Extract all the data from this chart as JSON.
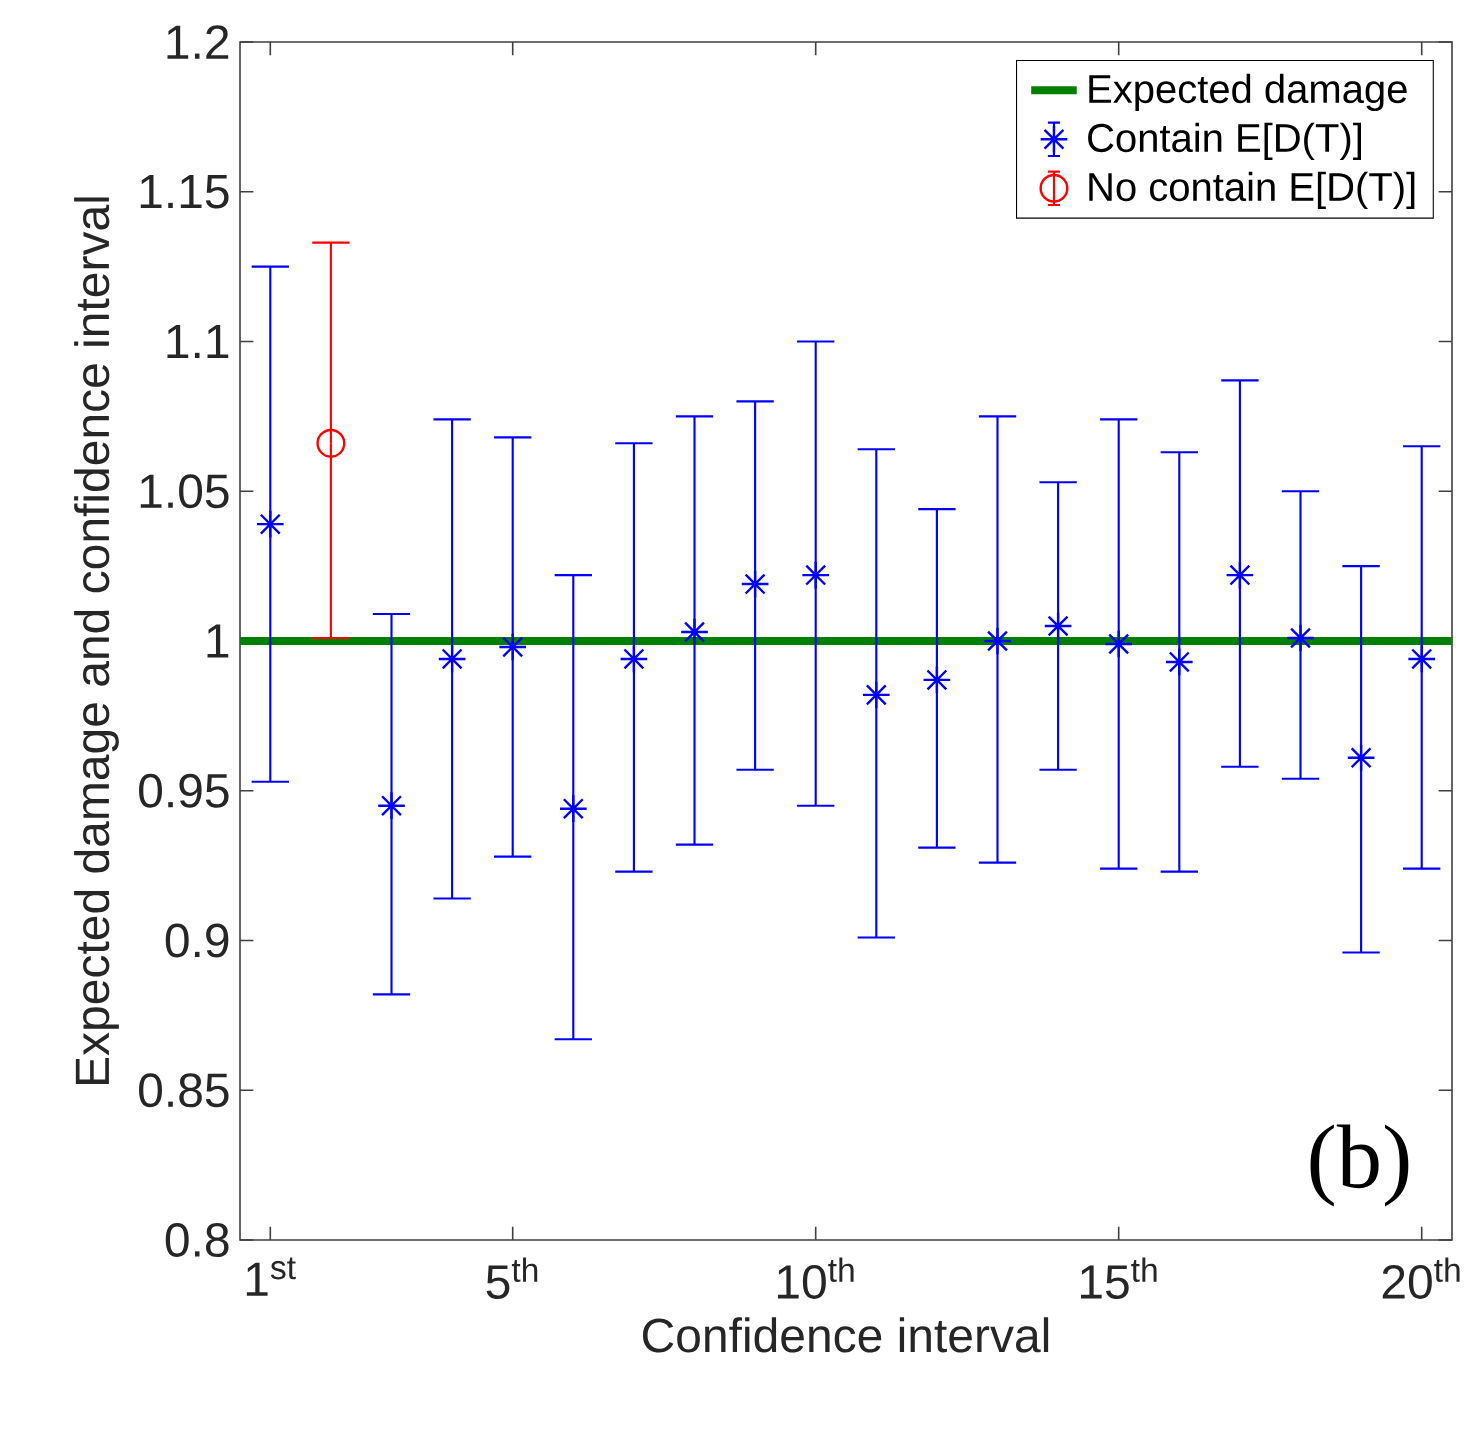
{
  "chart_data": {
    "type": "scatter",
    "xlabel": "Confidence interval",
    "ylabel": "Expected damage and confidence interval",
    "xlim": [
      0.5,
      20.5
    ],
    "ylim": [
      0.8,
      1.2
    ],
    "xticks": [
      {
        "value": 1,
        "label": "1$^{st}$"
      },
      {
        "value": 5,
        "label": "5$^{th}$"
      },
      {
        "value": 10,
        "label": "10$^{th}$"
      },
      {
        "value": 15,
        "label": "15$^{th}$"
      },
      {
        "value": 20,
        "label": "20$^{th}$"
      }
    ],
    "yticks": [
      0.8,
      0.85,
      0.9,
      0.95,
      1,
      1.05,
      1.1,
      1.15,
      1.2
    ],
    "legend": "top right",
    "grid": false,
    "annotations": [
      "(b)"
    ],
    "series": [
      {
        "name": "Expected damage",
        "type": "line",
        "color": "#008000",
        "marker": "none",
        "line_style": "solid",
        "x": [
          0.5,
          20.5
        ],
        "values": [
          1,
          1
        ]
      },
      {
        "name": "Contain E[D(T)]",
        "color": "#0000ff",
        "marker": "cross",
        "x": [
          1,
          3,
          4,
          5,
          6,
          7,
          8,
          9,
          10,
          11,
          12,
          13,
          14,
          15,
          16,
          17,
          18,
          19,
          20
        ],
        "values": [
          1.039,
          0.945,
          0.994,
          0.998,
          0.944,
          0.994,
          1.003,
          1.019,
          1.022,
          0.982,
          0.987,
          1.0,
          1.005,
          0.999,
          0.993,
          1.022,
          1.001,
          0.961,
          0.994
        ],
        "errors": [
          [
            0.953,
            1.125
          ],
          [
            0.882,
            1.009
          ],
          [
            0.914,
            1.074
          ],
          [
            0.928,
            1.068
          ],
          [
            0.867,
            1.022
          ],
          [
            0.923,
            1.066
          ],
          [
            0.932,
            1.075
          ],
          [
            0.957,
            1.08
          ],
          [
            0.945,
            1.1
          ],
          [
            0.901,
            1.064
          ],
          [
            0.931,
            1.044
          ],
          [
            0.926,
            1.075
          ],
          [
            0.957,
            1.053
          ],
          [
            0.924,
            1.074
          ],
          [
            0.923,
            1.063
          ],
          [
            0.958,
            1.087
          ],
          [
            0.954,
            1.05
          ],
          [
            0.896,
            1.025
          ],
          [
            0.924,
            1.065
          ]
        ]
      },
      {
        "name": "No contain E[D(T)]",
        "color": "#ff0000",
        "marker": "circle",
        "x": [
          2
        ],
        "values": [
          1.066
        ],
        "errors": [
          [
            1.001,
            1.133
          ]
        ]
      }
    ]
  }
}
